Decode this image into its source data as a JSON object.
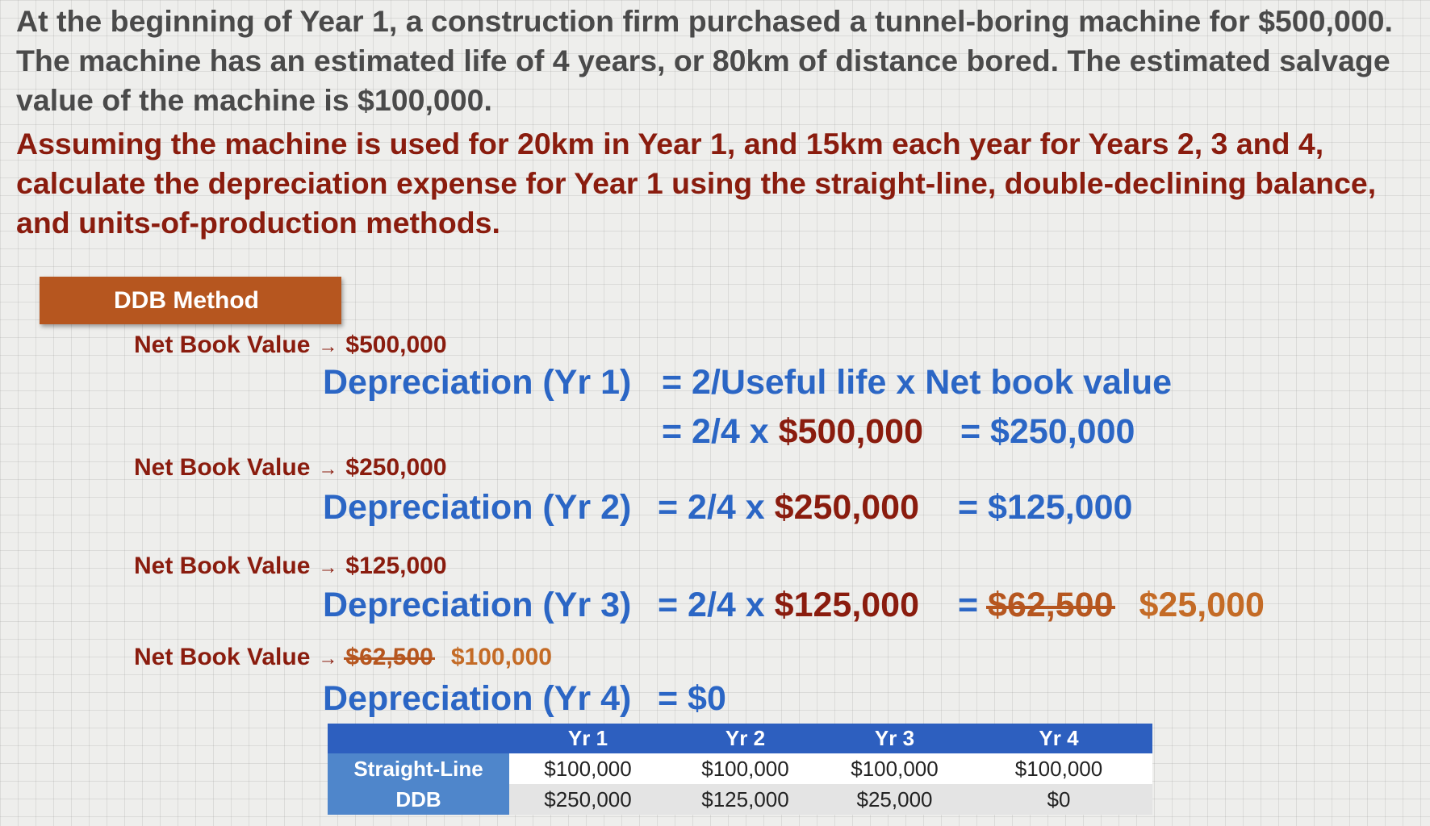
{
  "problem_text": "At the beginning of Year 1, a construction firm purchased a tunnel-boring machine for $500,000.  The machine has an estimated life of 4 years, or 80km of distance bored.  The estimated salvage value of the machine is $100,000.",
  "question_text": "Assuming the machine is used for 20km in Year 1, and 15km each year for Years 2, 3 and 4, calculate the depreciation expense for Year 1 using the straight-line, double-declining balance, and units-of-production methods.",
  "method_tag": "DDB Method",
  "nbv_label": "Net Book Value",
  "arrow": "→",
  "nbv": {
    "y1": "$500,000",
    "y2": "$250,000",
    "y3": "$125,000",
    "y4_struck": "$62,500",
    "y4": "$100,000"
  },
  "equations": {
    "y1_lhs": "Depreciation (Yr 1)",
    "y1_formula": "= 2/Useful life  x  Net book value",
    "y1_calc_prefix": "= 2/4 x ",
    "y1_calc_amount": "$500,000",
    "y1_result": "= $250,000",
    "y2_lhs": "Depreciation (Yr 2)",
    "y2_calc_prefix": "= 2/4 x ",
    "y2_calc_amount": "$250,000",
    "y2_result": "= $125,000",
    "y3_lhs": "Depreciation (Yr 3)",
    "y3_calc_prefix": "= 2/4 x ",
    "y3_calc_amount": "$125,000",
    "y3_result_prefix": "= ",
    "y3_result_struck": "$62,500",
    "y3_result_alt": "$25,000",
    "y4_lhs": "Depreciation (Yr 4)",
    "y4_result": "= $0"
  },
  "table": {
    "headers": [
      "",
      "Yr 1",
      "Yr 2",
      "Yr 3",
      "Yr 4"
    ],
    "rows": [
      {
        "label": "Straight-Line",
        "values": [
          "$100,000",
          "$100,000",
          "$100,000",
          "$100,000"
        ]
      },
      {
        "label": "DDB",
        "values": [
          "$250,000",
          "$125,000",
          "$25,000",
          "$0"
        ]
      }
    ]
  },
  "colors": {
    "problem_text": "#4a4a4a",
    "question_text": "#8a1c0e",
    "equation_blue": "#2b66c5",
    "tag_orange": "#b6561f",
    "correction_orange": "#c46b26",
    "table_header": "#2d5fbf",
    "table_row_label": "#4f86cb"
  }
}
